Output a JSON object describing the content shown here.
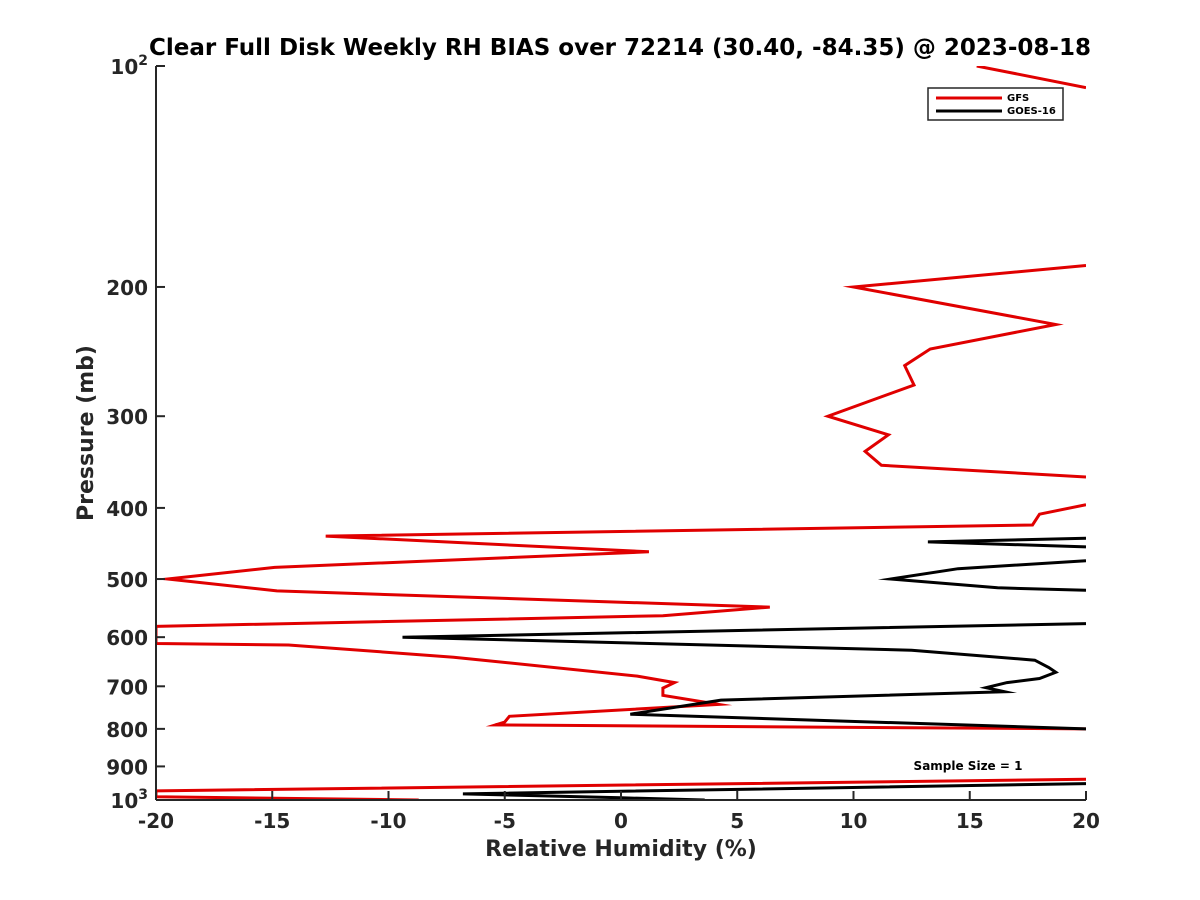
{
  "chart_data": {
    "type": "line",
    "title": "Clear Full Disk Weekly RH BIAS over 72214 (30.40, -84.35) @ 2023-08-18",
    "xlabel": "Relative Humidity (%)",
    "ylabel": "Pressure (mb)",
    "xlim": [
      -20,
      20
    ],
    "ylim": [
      100,
      1000
    ],
    "y_scale": "log",
    "y_reversed": true,
    "x_ticks": [
      {
        "value": -20,
        "label": "-20"
      },
      {
        "value": -15,
        "label": "-15"
      },
      {
        "value": -10,
        "label": "-10"
      },
      {
        "value": -5,
        "label": "-5"
      },
      {
        "value": 0,
        "label": "0"
      },
      {
        "value": 5,
        "label": "5"
      },
      {
        "value": 10,
        "label": "10"
      },
      {
        "value": 15,
        "label": "15"
      },
      {
        "value": 20,
        "label": "20"
      }
    ],
    "y_ticks": [
      {
        "value": 100,
        "base": "10",
        "exp": "2"
      },
      {
        "value": 200,
        "base": "200",
        "exp": ""
      },
      {
        "value": 300,
        "base": "300",
        "exp": ""
      },
      {
        "value": 400,
        "base": "400",
        "exp": ""
      },
      {
        "value": 500,
        "base": "500",
        "exp": ""
      },
      {
        "value": 600,
        "base": "600",
        "exp": ""
      },
      {
        "value": 700,
        "base": "700",
        "exp": ""
      },
      {
        "value": 800,
        "base": "800",
        "exp": ""
      },
      {
        "value": 900,
        "base": "900",
        "exp": ""
      },
      {
        "value": 1000,
        "base": "10",
        "exp": "3"
      }
    ],
    "grid": false,
    "legend_position": "top-right",
    "annotation": "Sample Size = 1",
    "series": [
      {
        "name": "GFS",
        "color": "#e00000",
        "points": [
          [
            15.3,
            100
          ],
          [
            20,
            107
          ],
          [
            null,
            null
          ],
          [
            20,
            187
          ],
          [
            10,
            200
          ],
          [
            18.7,
            225
          ],
          [
            13.3,
            243
          ],
          [
            12.2,
            256
          ],
          [
            12.6,
            272
          ],
          [
            8.9,
            300
          ],
          [
            11.5,
            318
          ],
          [
            10.5,
            335
          ],
          [
            11.2,
            350
          ],
          [
            20,
            363
          ],
          [
            null,
            null
          ],
          [
            20,
            396
          ],
          [
            18.0,
            408
          ],
          [
            17.7,
            422
          ],
          [
            -12.7,
            437
          ],
          [
            1.2,
            459
          ],
          [
            -14.9,
            482
          ],
          [
            -19.5,
            500
          ],
          [
            -14.8,
            519
          ],
          [
            6.4,
            546
          ],
          [
            1.8,
            561
          ],
          [
            -20,
            580
          ],
          [
            -20,
            612
          ],
          [
            -14.3,
            615
          ],
          [
            -7.2,
            639
          ],
          [
            0.7,
            678
          ],
          [
            2.3,
            692
          ],
          [
            1.8,
            704
          ],
          [
            1.8,
            720
          ],
          [
            4.2,
            741
          ],
          [
            -4.8,
            769
          ],
          [
            -5.0,
            783
          ],
          [
            -5.4,
            790
          ],
          [
            20,
            800
          ],
          [
            null,
            null
          ],
          [
            20,
            937
          ],
          [
            -20,
            972
          ],
          [
            -20,
            990
          ],
          [
            -8.7,
            1000
          ]
        ]
      },
      {
        "name": "GOES-16",
        "color": "#000000",
        "points": [
          [
            20,
            440
          ],
          [
            13.2,
            445
          ],
          [
            20,
            452
          ],
          [
            null,
            null
          ],
          [
            20,
            472
          ],
          [
            14.5,
            484
          ],
          [
            11.6,
            500
          ],
          [
            16.2,
            514
          ],
          [
            20,
            518
          ],
          [
            null,
            null
          ],
          [
            20,
            575
          ],
          [
            -9.4,
            600
          ],
          [
            12.5,
            625
          ],
          [
            17.8,
            645
          ],
          [
            18.4,
            660
          ],
          [
            18.7,
            670
          ],
          [
            18.0,
            683
          ],
          [
            16.6,
            692
          ],
          [
            15.7,
            703
          ],
          [
            16.5,
            712
          ],
          [
            4.3,
            731
          ],
          [
            0.4,
            764
          ],
          [
            20,
            800
          ],
          [
            null,
            null
          ],
          [
            20,
            950
          ],
          [
            -6.8,
            981
          ],
          [
            0.0,
            993
          ],
          [
            3.6,
            1000
          ]
        ]
      }
    ]
  }
}
